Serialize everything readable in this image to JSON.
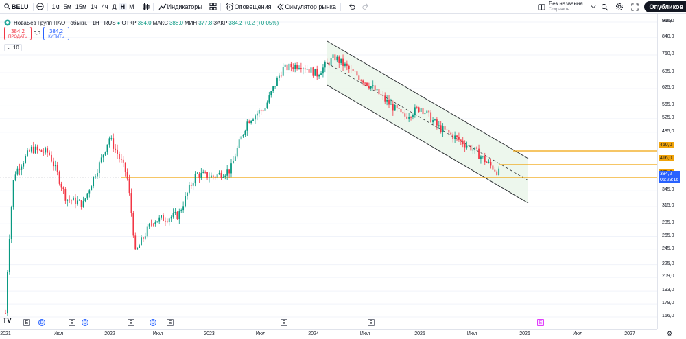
{
  "toolbar": {
    "symbol": "BELU",
    "timeframes": [
      "1м",
      "5м",
      "15м",
      "1ч",
      "4ч",
      "Д",
      "Н",
      "М"
    ],
    "active_timeframe": "Н",
    "indicators_label": "Индикаторы",
    "alerts_label": "Оповещения",
    "replay_label": "Симулятор рынка",
    "layout_name": "Без названия",
    "layout_status": "Сохранить",
    "publish_label": "Опубликов"
  },
  "legend": {
    "title": "НоваБев Групп ПАО · обыкн. · 1Н · RUS",
    "open_key": "ОТКР",
    "open_val": "384,0",
    "high_key": "МАКС",
    "high_val": "388,0",
    "low_key": "МИН",
    "low_val": "377,8",
    "close_key": "ЗАКР",
    "close_val": "384,2",
    "change": "+0,2 (+0,05%)"
  },
  "trade": {
    "sell_price": "384,2",
    "sell_label": "ПРОДАТЬ",
    "spread": "0,0",
    "buy_price": "384,2",
    "buy_label": "КУПИТЬ"
  },
  "indicators_collapsed": "10",
  "currency": "RUB",
  "colors": {
    "up": "#089981",
    "down": "#f23645",
    "level": "#f0a30a",
    "channel": "#2f3336",
    "channel_fill": "#e8f5e9",
    "accent": "#2962ff"
  },
  "price_axis": {
    "ticks": [
      "920,0",
      "840,0",
      "760,0",
      "685,0",
      "625,0",
      "565,0",
      "525,0",
      "485,0",
      "345,0",
      "315,0",
      "285,0",
      "265,0",
      "245,0",
      "225,0",
      "209,0",
      "193,0",
      "179,0",
      "166,0"
    ],
    "level_labels": [
      "450,0",
      "416,0",
      "385,0"
    ],
    "last_price": "384,2",
    "countdown": "05:29:16"
  },
  "time_axis": {
    "ticks": [
      "2021",
      "Июл",
      "2022",
      "Июл",
      "2023",
      "Июл",
      "2024",
      "Июл",
      "2025",
      "Июл",
      "2026",
      "Июл",
      "2027"
    ]
  },
  "events": [
    "E",
    "D",
    "E",
    "D",
    "E",
    "D",
    "E",
    "E",
    "E",
    "E"
  ],
  "chart_data": {
    "type": "candlestick",
    "symbol": "BELU",
    "interval": "1 week",
    "x_range": [
      "2021",
      "2027"
    ],
    "y_range": [
      166,
      920
    ],
    "y_scale": "log",
    "horizontal_levels": [
      450,
      416,
      385
    ],
    "last_price": 384.2,
    "ohlc_last": {
      "open": 384.0,
      "high": 388.0,
      "low": 377.8,
      "close": 384.2
    },
    "approx_path": [
      [
        "2021-01",
        170
      ],
      [
        "2021-02",
        380
      ],
      [
        "2021-04",
        440
      ],
      [
        "2021-06",
        430
      ],
      [
        "2021-08",
        330
      ],
      [
        "2021-10",
        320
      ],
      [
        "2021-12",
        410
      ],
      [
        "2022-01",
        470
      ],
      [
        "2022-03",
        380
      ],
      [
        "2022-04",
        240
      ],
      [
        "2022-06",
        290
      ],
      [
        "2022-09",
        300
      ],
      [
        "2022-11",
        380
      ],
      [
        "2023-01",
        375
      ],
      [
        "2023-03",
        390
      ],
      [
        "2023-05",
        520
      ],
      [
        "2023-07",
        560
      ],
      [
        "2023-09",
        700
      ],
      [
        "2023-11",
        720
      ],
      [
        "2024-01",
        680
      ],
      [
        "2024-03",
        750
      ],
      [
        "2024-05",
        690
      ],
      [
        "2024-07",
        640
      ],
      [
        "2024-09",
        580
      ],
      [
        "2024-11",
        530
      ],
      [
        "2025-01",
        560
      ],
      [
        "2025-03",
        500
      ],
      [
        "2025-05",
        470
      ],
      [
        "2025-07",
        440
      ],
      [
        "2025-09",
        400
      ],
      [
        "2025-10",
        384
      ]
    ]
  }
}
